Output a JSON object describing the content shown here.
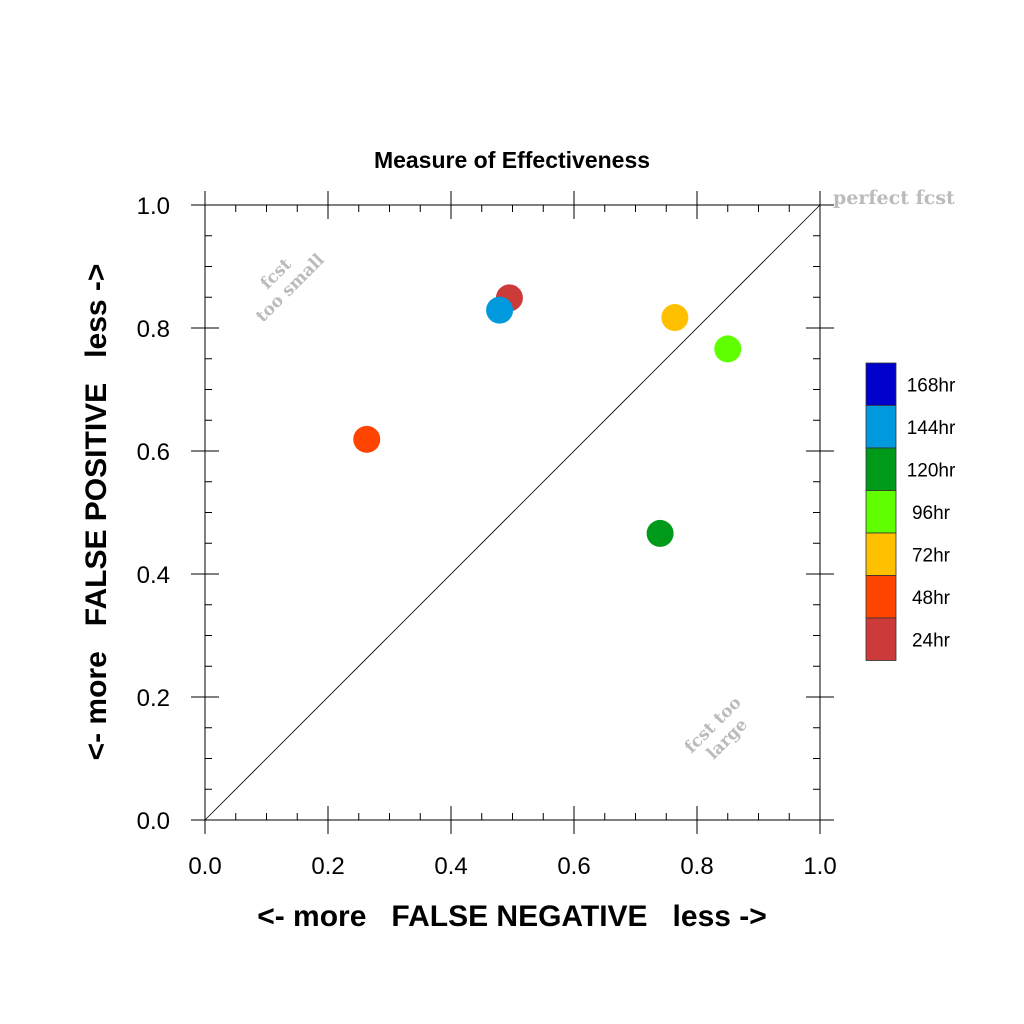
{
  "chart_data": {
    "type": "scatter",
    "title": "Measure of Effectiveness",
    "xlabel": "<- more   FALSE NEGATIVE   less ->",
    "ylabel": "<- more   FALSE POSITIVE   less ->",
    "xlim": [
      0.0,
      1.0
    ],
    "ylim": [
      0.0,
      1.0
    ],
    "x_ticks": [
      "0.0",
      "0.2",
      "0.4",
      "0.6",
      "0.8",
      "1.0"
    ],
    "y_ticks": [
      "0.0",
      "0.2",
      "0.4",
      "0.6",
      "0.8",
      "1.0"
    ],
    "grid": false,
    "diagonal_line": true,
    "annotations": {
      "perfect": "perfect fcst",
      "too_small_line1": "fcst",
      "too_small_line2": "too small",
      "too_large_line1": "fcst too",
      "too_large_line2": "large"
    },
    "points": [
      {
        "label": "24hr",
        "x": 0.495,
        "y": 0.849,
        "color": "#cc3a3a"
      },
      {
        "label": "144hr",
        "x": 0.479,
        "y": 0.829,
        "color": "#0099dd"
      },
      {
        "label": "72hr",
        "x": 0.764,
        "y": 0.817,
        "color": "#ffc000"
      },
      {
        "label": "96hr",
        "x": 0.85,
        "y": 0.766,
        "color": "#5fff00"
      },
      {
        "label": "48hr",
        "x": 0.263,
        "y": 0.619,
        "color": "#ff4400"
      },
      {
        "label": "120hr",
        "x": 0.74,
        "y": 0.466,
        "color": "#009a1a"
      }
    ],
    "legend": {
      "placement": "right",
      "entries": [
        {
          "label": "168hr",
          "color": "#0000cc"
        },
        {
          "label": "144hr",
          "color": "#0099dd"
        },
        {
          "label": "120hr",
          "color": "#009a1a"
        },
        {
          "label": "96hr",
          "color": "#5fff00"
        },
        {
          "label": "72hr",
          "color": "#ffc000"
        },
        {
          "label": "48hr",
          "color": "#ff4400"
        },
        {
          "label": "24hr",
          "color": "#cc3a3a"
        }
      ]
    }
  }
}
